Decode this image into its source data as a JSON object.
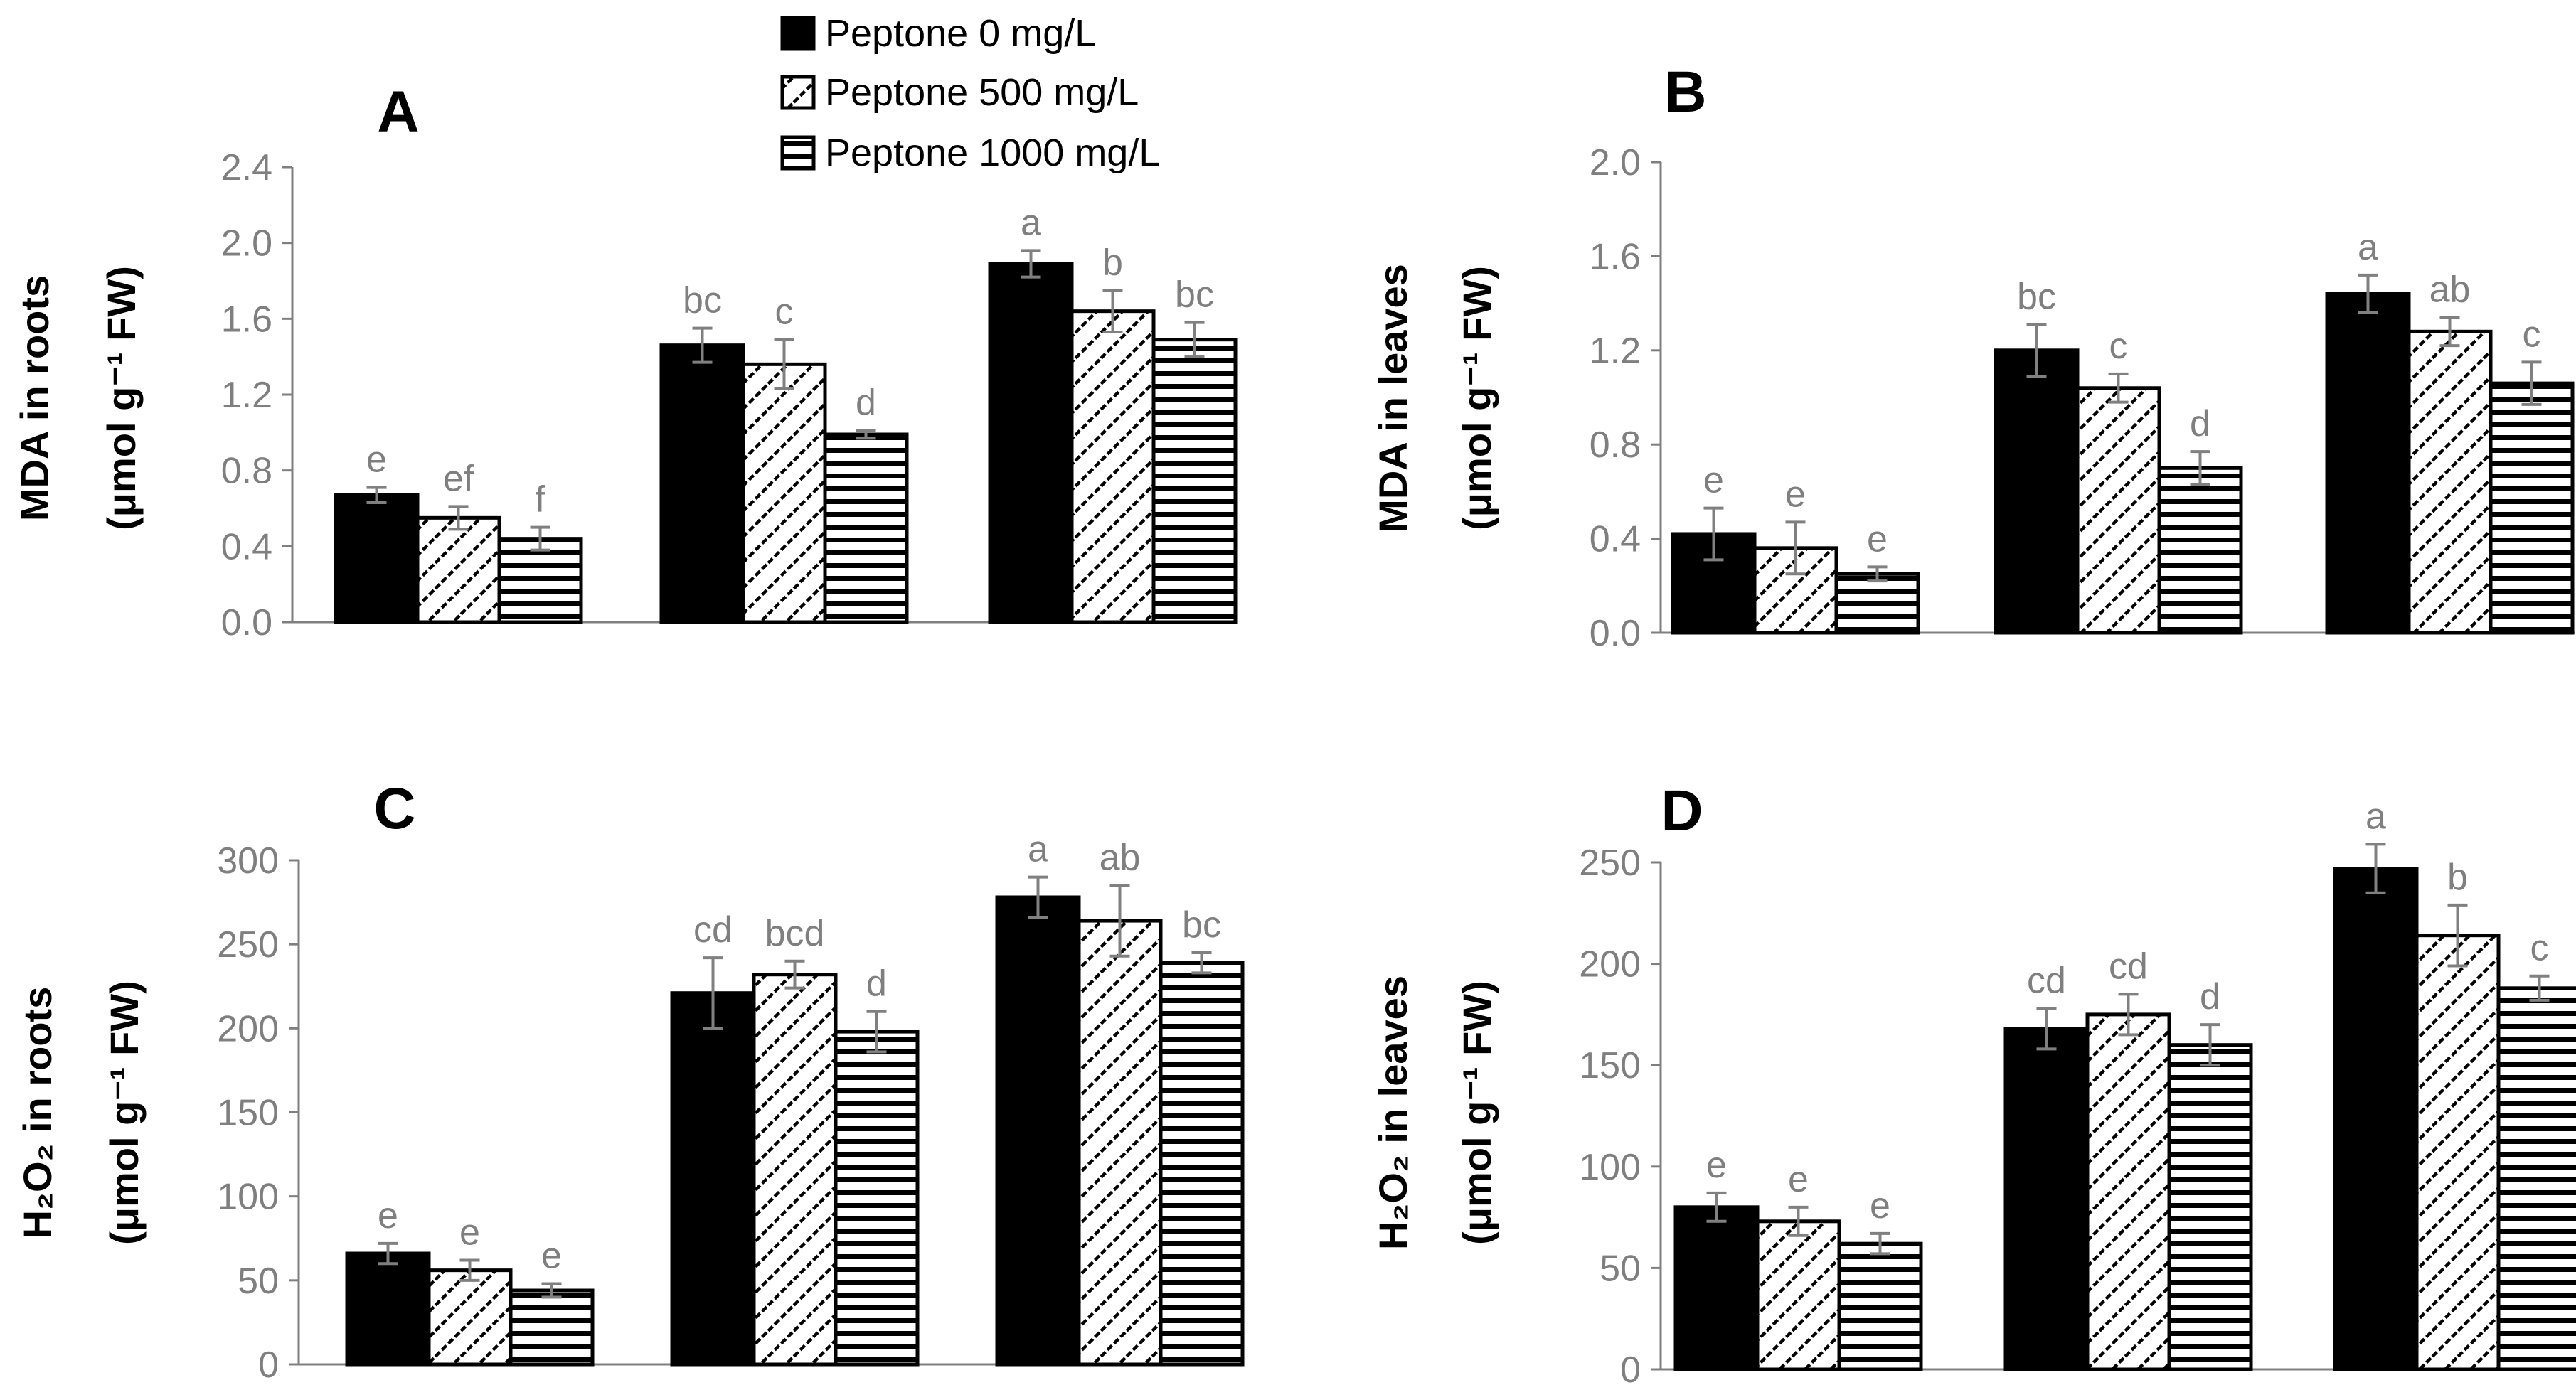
{
  "legend": [
    {
      "label": "Peptone 0 mg/L",
      "pattern": "solid"
    },
    {
      "label": "Peptone 500 mg/L",
      "pattern": "diagonal"
    },
    {
      "label": "Peptone 1000 mg/L",
      "pattern": "horizontal"
    }
  ],
  "colors": {
    "bar_fill": "#000000",
    "axis": "#7f7f7f",
    "text": "#000000",
    "tick_text": "#7f7f7f"
  },
  "chart_data": [
    {
      "type": "bar",
      "panel": "A",
      "title": "MDA in roots (μmol g⁻¹ FW)",
      "ylabel_line1": "MDA in roots",
      "ylabel_line2": "(μmol g⁻¹ FW)",
      "ylim": [
        0,
        2.4
      ],
      "yticks": [
        "0.0",
        "0.4",
        "0.8",
        "1.2",
        "1.6",
        "2.0",
        "2.4"
      ],
      "groups": 3,
      "series": [
        {
          "name": "Peptone 0 mg/L",
          "values": [
            0.67,
            1.46,
            1.89
          ],
          "errors": [
            0.04,
            0.09,
            0.07
          ],
          "letters": [
            "e",
            "bc",
            "a"
          ]
        },
        {
          "name": "Peptone 500 mg/L",
          "values": [
            0.55,
            1.36,
            1.64
          ],
          "errors": [
            0.06,
            0.13,
            0.11
          ],
          "letters": [
            "ef",
            "c",
            "b"
          ]
        },
        {
          "name": "Peptone 1000 mg/L",
          "values": [
            0.44,
            0.99,
            1.49
          ],
          "errors": [
            0.06,
            0.02,
            0.09
          ],
          "letters": [
            "f",
            "d",
            "bc"
          ]
        }
      ]
    },
    {
      "type": "bar",
      "panel": "B",
      "title": "MDA in leaves (μmol g⁻¹ FW)",
      "ylabel_line1": "MDA in leaves",
      "ylabel_line2": "(μmol g⁻¹ FW)",
      "ylim": [
        0,
        2.0
      ],
      "yticks": [
        "0.0",
        "0.4",
        "0.8",
        "1.2",
        "1.6",
        "2.0"
      ],
      "groups": 3,
      "series": [
        {
          "name": "Peptone 0 mg/L",
          "values": [
            0.42,
            1.2,
            1.44
          ],
          "errors": [
            0.11,
            0.11,
            0.08
          ],
          "letters": [
            "e",
            "bc",
            "a"
          ]
        },
        {
          "name": "Peptone 500 mg/L",
          "values": [
            0.36,
            1.04,
            1.28
          ],
          "errors": [
            0.11,
            0.06,
            0.06
          ],
          "letters": [
            "e",
            "c",
            "ab"
          ]
        },
        {
          "name": "Peptone 1000 mg/L",
          "values": [
            0.25,
            0.7,
            1.06
          ],
          "errors": [
            0.03,
            0.07,
            0.09
          ],
          "letters": [
            "e",
            "d",
            "c"
          ]
        }
      ]
    },
    {
      "type": "bar",
      "panel": "C",
      "title": "H₂O₂ in roots (μmol g⁻¹ FW)",
      "ylabel_line1": "H₂O₂ in roots",
      "ylabel_line2": "(μmol g⁻¹ FW)",
      "ylim": [
        0,
        300
      ],
      "yticks": [
        "0",
        "50",
        "100",
        "150",
        "200",
        "250",
        "300"
      ],
      "groups": 3,
      "series": [
        {
          "name": "Peptone 0 mg/L",
          "values": [
            66,
            221,
            278
          ],
          "errors": [
            6,
            21,
            12
          ],
          "letters": [
            "e",
            "cd",
            "a"
          ]
        },
        {
          "name": "Peptone 500 mg/L",
          "values": [
            56,
            232,
            264
          ],
          "errors": [
            6,
            8,
            21
          ],
          "letters": [
            "e",
            "bcd",
            "ab"
          ]
        },
        {
          "name": "Peptone 1000 mg/L",
          "values": [
            44,
            198,
            239
          ],
          "errors": [
            4,
            12,
            6
          ],
          "letters": [
            "e",
            "d",
            "bc"
          ]
        }
      ]
    },
    {
      "type": "bar",
      "panel": "D",
      "title": "H₂O₂ in leaves (μmol g⁻¹ FW)",
      "ylabel_line1": "H₂O₂ in leaves",
      "ylabel_line2": "(μmol g⁻¹ FW)",
      "ylim": [
        0,
        250
      ],
      "yticks": [
        "0",
        "50",
        "100",
        "150",
        "200",
        "250"
      ],
      "groups": 3,
      "series": [
        {
          "name": "Peptone 0 mg/L",
          "values": [
            80,
            168,
            247
          ],
          "errors": [
            7,
            10,
            12
          ],
          "letters": [
            "e",
            "cd",
            "a"
          ]
        },
        {
          "name": "Peptone 500 mg/L",
          "values": [
            73,
            175,
            214
          ],
          "errors": [
            7,
            10,
            15
          ],
          "letters": [
            "e",
            "cd",
            "b"
          ]
        },
        {
          "name": "Peptone 1000 mg/L",
          "values": [
            62,
            160,
            188
          ],
          "errors": [
            5,
            10,
            6
          ],
          "letters": [
            "e",
            "d",
            "c"
          ]
        }
      ]
    }
  ]
}
